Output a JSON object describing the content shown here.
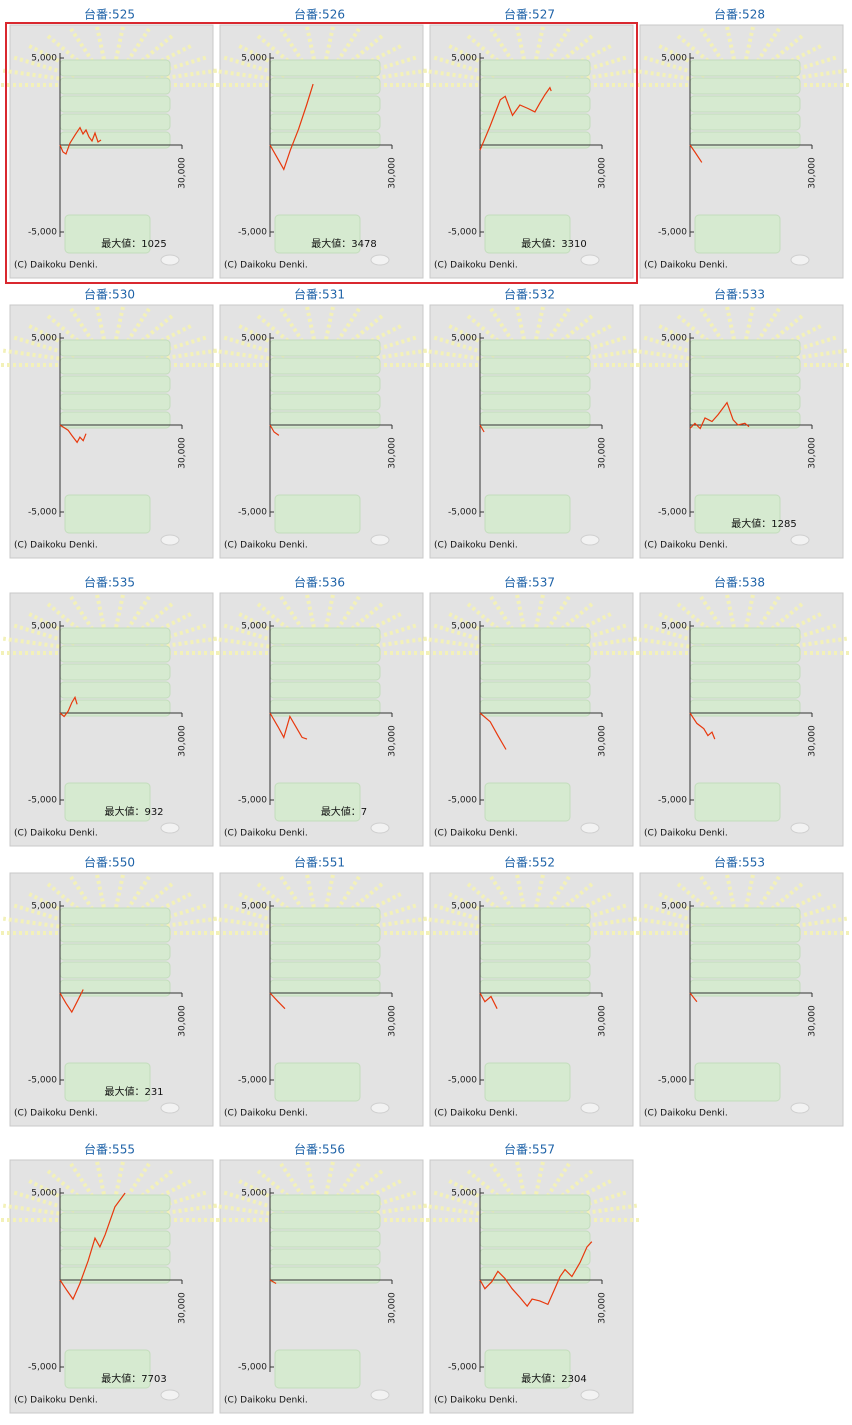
{
  "copyright": "(C) Daikoku Denki.",
  "chart_data": [
    {
      "type": "line",
      "title": "台番:525",
      "color": "#e8380d",
      "x": [
        0,
        740,
        1480,
        2460,
        3690,
        4920,
        5650,
        6390,
        7130,
        7870,
        8600,
        9340,
        10080
      ],
      "values": [
        0,
        -400,
        -520,
        110,
        570,
        1000,
        630,
        860,
        460,
        230,
        690,
        170,
        290
      ],
      "annotation": "最大値：1025",
      "xlim": [
        0,
        30000
      ],
      "ylim": [
        -5000,
        5000
      ],
      "xticks": [
        {
          "value": 30000,
          "label": "30,000"
        }
      ],
      "yticks": [
        {
          "value": -5000,
          "label": "-5,000"
        },
        {
          "value": 5000,
          "label": "5,000"
        }
      ]
    },
    {
      "type": "line",
      "title": "台番:526",
      "color": "#e8380d",
      "x": [
        0,
        1700,
        3400,
        5000,
        7000,
        9000,
        10600
      ],
      "values": [
        0,
        -700,
        -1400,
        -300,
        900,
        2300,
        3500
      ],
      "annotation": "最大値：3478",
      "xlim": [
        0,
        30000
      ],
      "ylim": [
        -5000,
        5000
      ],
      "xticks": [
        {
          "value": 30000,
          "label": "30,000"
        }
      ],
      "yticks": [
        {
          "value": -5000,
          "label": "-5,000"
        },
        {
          "value": 5000,
          "label": "5,000"
        }
      ]
    },
    {
      "type": "line",
      "title": "台番:527",
      "color": "#e8380d",
      "x": [
        0,
        2500,
        5000,
        6200,
        8000,
        9800,
        11800,
        13500,
        14700,
        16000,
        17200,
        17500
      ],
      "values": [
        -300,
        1100,
        2600,
        2800,
        1700,
        2300,
        2100,
        1900,
        2400,
        2900,
        3300,
        3100
      ],
      "annotation": "最大値：3310",
      "xlim": [
        0,
        30000
      ],
      "ylim": [
        -5000,
        5000
      ],
      "xticks": [
        {
          "value": 30000,
          "label": "30,000"
        }
      ],
      "yticks": [
        {
          "value": -5000,
          "label": "-5,000"
        },
        {
          "value": 5000,
          "label": "5,000"
        }
      ]
    },
    {
      "type": "line",
      "title": "台番:528",
      "color": "#e8380d",
      "x": [
        0,
        1200,
        2900
      ],
      "values": [
        0,
        -400,
        -1000
      ],
      "xlim": [
        0,
        30000
      ],
      "ylim": [
        -5000,
        5000
      ],
      "xticks": [
        {
          "value": 30000,
          "label": "30,000"
        }
      ],
      "yticks": [
        {
          "value": -5000,
          "label": "-5,000"
        },
        {
          "value": 5000,
          "label": "5,000"
        }
      ]
    },
    {
      "type": "line",
      "title": "台番:530",
      "color": "#e8380d",
      "x": [
        0,
        2000,
        2900,
        4200,
        4900,
        5700,
        6400
      ],
      "values": [
        0,
        -300,
        -600,
        -1000,
        -700,
        -900,
        -500
      ],
      "xlim": [
        0,
        30000
      ],
      "ylim": [
        -5000,
        5000
      ],
      "xticks": [
        {
          "value": 30000,
          "label": "30,000"
        }
      ],
      "yticks": [
        {
          "value": -5000,
          "label": "-5,000"
        },
        {
          "value": 5000,
          "label": "5,000"
        }
      ]
    },
    {
      "type": "line",
      "title": "台番:531",
      "color": "#e8380d",
      "x": [
        0,
        1000,
        2200
      ],
      "values": [
        0,
        -400,
        -600
      ],
      "xlim": [
        0,
        30000
      ],
      "ylim": [
        -5000,
        5000
      ],
      "xticks": [
        {
          "value": 30000,
          "label": "30,000"
        }
      ],
      "yticks": [
        {
          "value": -5000,
          "label": "-5,000"
        },
        {
          "value": 5000,
          "label": "5,000"
        }
      ]
    },
    {
      "type": "line",
      "title": "台番:532",
      "color": "#e8380d",
      "x": [
        0,
        1000
      ],
      "values": [
        0,
        -400
      ],
      "xlim": [
        0,
        30000
      ],
      "ylim": [
        -5000,
        5000
      ],
      "xticks": [
        {
          "value": 30000,
          "label": "30,000"
        }
      ],
      "yticks": [
        {
          "value": -5000,
          "label": "-5,000"
        },
        {
          "value": 5000,
          "label": "5,000"
        }
      ]
    },
    {
      "type": "line",
      "title": "台番:533",
      "color": "#e8380d",
      "x": [
        0,
        1200,
        2500,
        3700,
        5400,
        6900,
        9100,
        10600,
        11800,
        13500,
        14500
      ],
      "values": [
        -200,
        100,
        -200,
        400,
        200,
        600,
        1285,
        300,
        0,
        100,
        -100
      ],
      "annotation": "最大値：1285",
      "xlim": [
        0,
        30000
      ],
      "ylim": [
        -5000,
        5000
      ],
      "xticks": [
        {
          "value": 30000,
          "label": "30,000"
        }
      ],
      "yticks": [
        {
          "value": -5000,
          "label": "-5,000"
        },
        {
          "value": 5000,
          "label": "5,000"
        }
      ]
    },
    {
      "type": "line",
      "title": "台番:535",
      "color": "#e8380d",
      "x": [
        0,
        1000,
        2000,
        2900,
        3700,
        4200
      ],
      "values": [
        0,
        -200,
        100,
        600,
        900,
        500
      ],
      "annotation": "最大値：932",
      "xlim": [
        0,
        30000
      ],
      "ylim": [
        -5000,
        5000
      ],
      "xticks": [
        {
          "value": 30000,
          "label": "30,000"
        }
      ],
      "yticks": [
        {
          "value": -5000,
          "label": "-5,000"
        },
        {
          "value": 5000,
          "label": "5,000"
        }
      ]
    },
    {
      "type": "line",
      "title": "台番:536",
      "color": "#e8380d",
      "x": [
        0,
        2000,
        3400,
        4900,
        6400,
        7900,
        9100
      ],
      "values": [
        0,
        -800,
        -1400,
        -200,
        -800,
        -1400,
        -1500
      ],
      "annotation": "最大値：7",
      "xlim": [
        0,
        30000
      ],
      "ylim": [
        -5000,
        5000
      ],
      "xticks": [
        {
          "value": 30000,
          "label": "30,000"
        }
      ],
      "yticks": [
        {
          "value": -5000,
          "label": "-5,000"
        },
        {
          "value": 5000,
          "label": "5,000"
        }
      ]
    },
    {
      "type": "line",
      "title": "台番:537",
      "color": "#e8380d",
      "x": [
        0,
        2500,
        4400,
        6400
      ],
      "values": [
        0,
        -500,
        -1300,
        -2100
      ],
      "xlim": [
        0,
        30000
      ],
      "ylim": [
        -5000,
        5000
      ],
      "xticks": [
        {
          "value": 30000,
          "label": "30,000"
        }
      ],
      "yticks": [
        {
          "value": -5000,
          "label": "-5,000"
        },
        {
          "value": 5000,
          "label": "5,000"
        }
      ]
    },
    {
      "type": "line",
      "title": "台番:538",
      "color": "#e8380d",
      "x": [
        0,
        1700,
        3400,
        4400,
        5400,
        6100
      ],
      "values": [
        0,
        -600,
        -900,
        -1300,
        -1100,
        -1500
      ],
      "xlim": [
        0,
        30000
      ],
      "ylim": [
        -5000,
        5000
      ],
      "xticks": [
        {
          "value": 30000,
          "label": "30,000"
        }
      ],
      "yticks": [
        {
          "value": -5000,
          "label": "-5,000"
        },
        {
          "value": 5000,
          "label": "5,000"
        }
      ]
    },
    {
      "type": "line",
      "title": "台番:550",
      "color": "#e8380d",
      "x": [
        0,
        1500,
        2900,
        4200,
        5700
      ],
      "values": [
        0,
        -600,
        -1100,
        -500,
        200
      ],
      "annotation": "最大値：231",
      "xlim": [
        0,
        30000
      ],
      "ylim": [
        -5000,
        5000
      ],
      "xticks": [
        {
          "value": 30000,
          "label": "30,000"
        }
      ],
      "yticks": [
        {
          "value": -5000,
          "label": "-5,000"
        },
        {
          "value": 5000,
          "label": "5,000"
        }
      ]
    },
    {
      "type": "line",
      "title": "台番:551",
      "color": "#e8380d",
      "x": [
        0,
        2000,
        3700
      ],
      "values": [
        0,
        -500,
        -900
      ],
      "xlim": [
        0,
        30000
      ],
      "ylim": [
        -5000,
        5000
      ],
      "xticks": [
        {
          "value": 30000,
          "label": "30,000"
        }
      ],
      "yticks": [
        {
          "value": -5000,
          "label": "-5,000"
        },
        {
          "value": 5000,
          "label": "5,000"
        }
      ]
    },
    {
      "type": "line",
      "title": "台番:552",
      "color": "#e8380d",
      "x": [
        0,
        1200,
        2700,
        4200
      ],
      "values": [
        0,
        -500,
        -200,
        -900
      ],
      "xlim": [
        0,
        30000
      ],
      "ylim": [
        -5000,
        5000
      ],
      "xticks": [
        {
          "value": 30000,
          "label": "30,000"
        }
      ],
      "yticks": [
        {
          "value": -5000,
          "label": "-5,000"
        },
        {
          "value": 5000,
          "label": "5,000"
        }
      ]
    },
    {
      "type": "line",
      "title": "台番:553",
      "color": "#e8380d",
      "x": [
        0,
        1700
      ],
      "values": [
        0,
        -500
      ],
      "xlim": [
        0,
        30000
      ],
      "ylim": [
        -5000,
        5000
      ],
      "xticks": [
        {
          "value": 30000,
          "label": "30,000"
        }
      ],
      "yticks": [
        {
          "value": -5000,
          "label": "-5,000"
        },
        {
          "value": 5000,
          "label": "5,000"
        }
      ]
    },
    {
      "type": "line",
      "title": "台番:555",
      "color": "#e8380d",
      "x": [
        0,
        1700,
        3200,
        4900,
        6900,
        8600,
        9800,
        11100,
        12300,
        13500,
        16000
      ],
      "values": [
        0,
        -600,
        -1100,
        -200,
        1100,
        2400,
        1900,
        2600,
        3400,
        4200,
        5000
      ],
      "annotation": "最大値：7703",
      "xlim": [
        0,
        30000
      ],
      "ylim": [
        -5000,
        5000
      ],
      "xticks": [
        {
          "value": 30000,
          "label": "30,000"
        }
      ],
      "yticks": [
        {
          "value": -5000,
          "label": "-5,000"
        },
        {
          "value": 5000,
          "label": "5,000"
        }
      ]
    },
    {
      "type": "line",
      "title": "台番:556",
      "color": "#e8380d",
      "x": [
        0,
        1500
      ],
      "values": [
        0,
        -200
      ],
      "xlim": [
        0,
        30000
      ],
      "ylim": [
        -5000,
        5000
      ],
      "xticks": [
        {
          "value": 30000,
          "label": "30,000"
        }
      ],
      "yticks": [
        {
          "value": -5000,
          "label": "-5,000"
        },
        {
          "value": 5000,
          "label": "5,000"
        }
      ]
    },
    {
      "type": "line",
      "title": "台番:557",
      "color": "#e8380d",
      "x": [
        0,
        1200,
        2900,
        4400,
        6100,
        7900,
        9800,
        11600,
        12800,
        14700,
        16700,
        18400,
        19700,
        20900,
        22600,
        24600,
        26300,
        27500
      ],
      "values": [
        0,
        -500,
        -100,
        500,
        100,
        -500,
        -1000,
        -1500,
        -1100,
        -1200,
        -1400,
        -500,
        200,
        600,
        200,
        1000,
        1900,
        2200
      ],
      "annotation": "最大値：2304",
      "xlim": [
        0,
        30000
      ],
      "ylim": [
        -5000,
        5000
      ],
      "xticks": [
        {
          "value": 30000,
          "label": "30,000"
        }
      ],
      "yticks": [
        {
          "value": -5000,
          "label": "-5,000"
        },
        {
          "value": 5000,
          "label": "5,000"
        }
      ]
    }
  ]
}
